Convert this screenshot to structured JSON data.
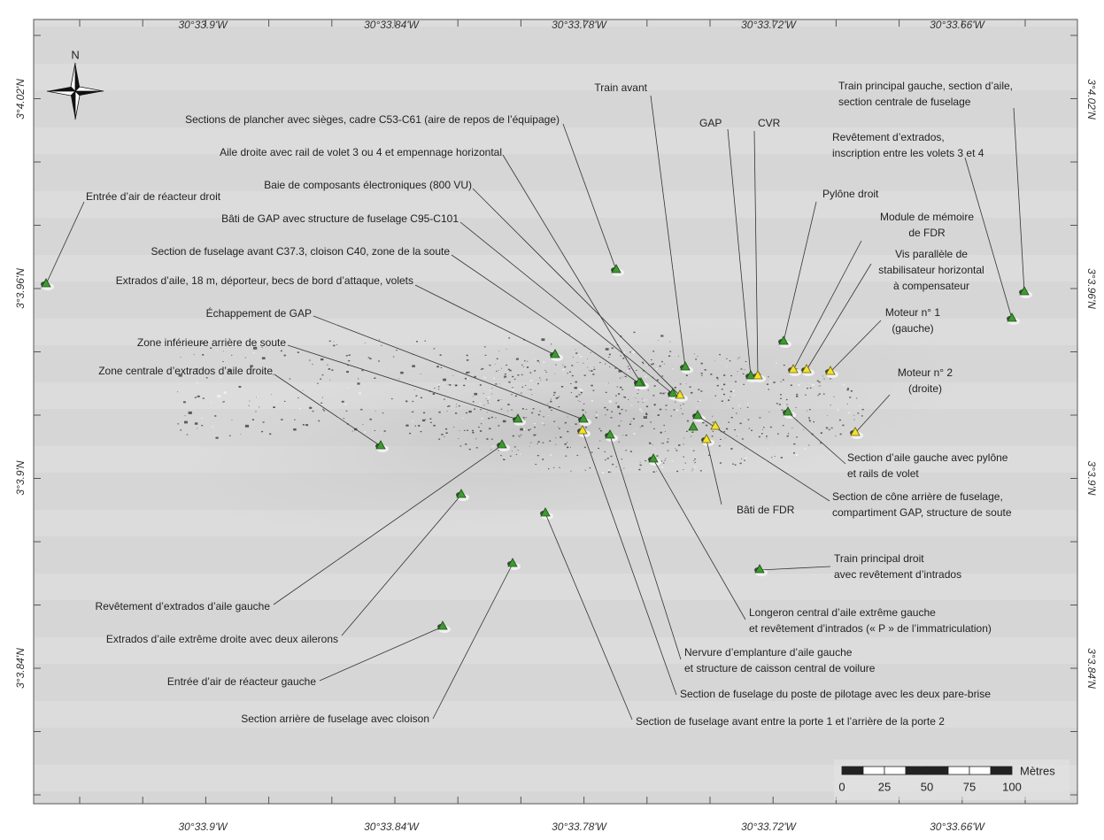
{
  "map": {
    "top_longitudes": [
      "30°33.9'W",
      "30°33.84'W",
      "30°33.78'W",
      "30°33.72'W",
      "30°33.66'W"
    ],
    "bottom_longitudes": [
      "30°33.9'W",
      "30°33.84'W",
      "30°33.78'W",
      "30°33.72'W",
      "30°33.66'W"
    ],
    "left_latitudes": [
      "3°4.02'N",
      "3°3.96'N",
      "3°3.9'N",
      "3°3.84'N"
    ],
    "right_latitudes": [
      "3°4.02'N",
      "3°3.96'N",
      "3°3.9'N",
      "3°3.84'N"
    ],
    "north": "N",
    "scale": {
      "unit": "Mètres",
      "ticks": [
        0,
        25,
        50,
        75,
        100
      ]
    },
    "features": [
      {
        "label": [
          "Train avant"
        ],
        "marker": "green"
      },
      {
        "label": [
          "Sections de plancher avec sièges, cadre C53-C61 (aire de repos de l’équipage)"
        ],
        "marker": "green"
      },
      {
        "label": [
          "Aile droite avec rail de volet 3 ou 4 et empennage horizontal"
        ],
        "marker": "green"
      },
      {
        "label": [
          "Baie de composants électroniques (800 VU)"
        ],
        "marker": "yellow"
      },
      {
        "label": [
          "Bâti de GAP avec structure de fuselage C95-C101"
        ],
        "marker": "green"
      },
      {
        "label": [
          "Section de fuselage avant C37.3, cloison C40, zone de la soute"
        ],
        "marker": "green"
      },
      {
        "label": [
          "Extrados d’aile, 18 m, déporteur, becs de bord d’attaque, volets"
        ],
        "marker": "green"
      },
      {
        "label": [
          "Échappement de GAP"
        ],
        "marker": "green"
      },
      {
        "label": [
          "Zone inférieure arrière de soute"
        ],
        "marker": "green"
      },
      {
        "label": [
          "Zone centrale d’extrados d’aile droite"
        ],
        "marker": "green"
      },
      {
        "label": [
          "Entrée d’air de réacteur droit"
        ],
        "marker": "green"
      },
      {
        "label": [
          "GAP"
        ],
        "marker": "green"
      },
      {
        "label": [
          "CVR"
        ],
        "marker": "yellow"
      },
      {
        "label": [
          "Revêtement d’extrados,",
          "inscription entre les volets 3 et 4"
        ],
        "marker": "green"
      },
      {
        "label": [
          "Train principal gauche, section d’aile,",
          "section centrale de fuselage"
        ],
        "marker": "green"
      },
      {
        "label": [
          "Pylône droit"
        ],
        "marker": "green"
      },
      {
        "label": [
          "Module de mémoire",
          "de FDR"
        ],
        "marker": "yellow"
      },
      {
        "label": [
          "Vis parallèle de",
          "stabilisateur horizontal",
          "à compensateur"
        ],
        "marker": "yellow"
      },
      {
        "label": [
          "Moteur n° 1",
          "(gauche)"
        ],
        "marker": "yellow"
      },
      {
        "label": [
          "Moteur n° 2",
          "(droite)"
        ],
        "marker": "yellow"
      },
      {
        "label": [
          "Section d’aile gauche avec pylône",
          "et rails de volet"
        ],
        "marker": "green"
      },
      {
        "label": [
          "Section de cône arrière de fuselage,",
          "compartiment GAP, structure de soute"
        ],
        "marker": "green"
      },
      {
        "label": [
          "Bâti de FDR"
        ],
        "marker": "yellow"
      },
      {
        "label": [
          "Train principal droit",
          "avec revêtement d’intrados"
        ],
        "marker": "green"
      },
      {
        "label": [
          "Longeron central d’aile extrême gauche",
          "et revêtement d’intrados (« P » de l’immatriculation)"
        ],
        "marker": "green"
      },
      {
        "label": [
          "Nervure d’emplanture d’aile gauche",
          "et structure de caisson central de voilure"
        ],
        "marker": "green"
      },
      {
        "label": [
          "Section de fuselage du poste de pilotage avec les deux pare-brise"
        ],
        "marker": "yellow"
      },
      {
        "label": [
          "Section de fuselage avant entre la porte 1 et l’arrière de la porte 2"
        ],
        "marker": "green"
      },
      {
        "label": [
          "Section arrière de fuselage avec cloison"
        ],
        "marker": "green"
      },
      {
        "label": [
          "Entrée d’air de réacteur gauche"
        ],
        "marker": "green"
      },
      {
        "label": [
          "Extrados d’aile extrême droite avec deux ailerons"
        ],
        "marker": "green"
      },
      {
        "label": [
          "Revêtement d’extrados d’aile gauche"
        ],
        "marker": "green"
      }
    ]
  }
}
